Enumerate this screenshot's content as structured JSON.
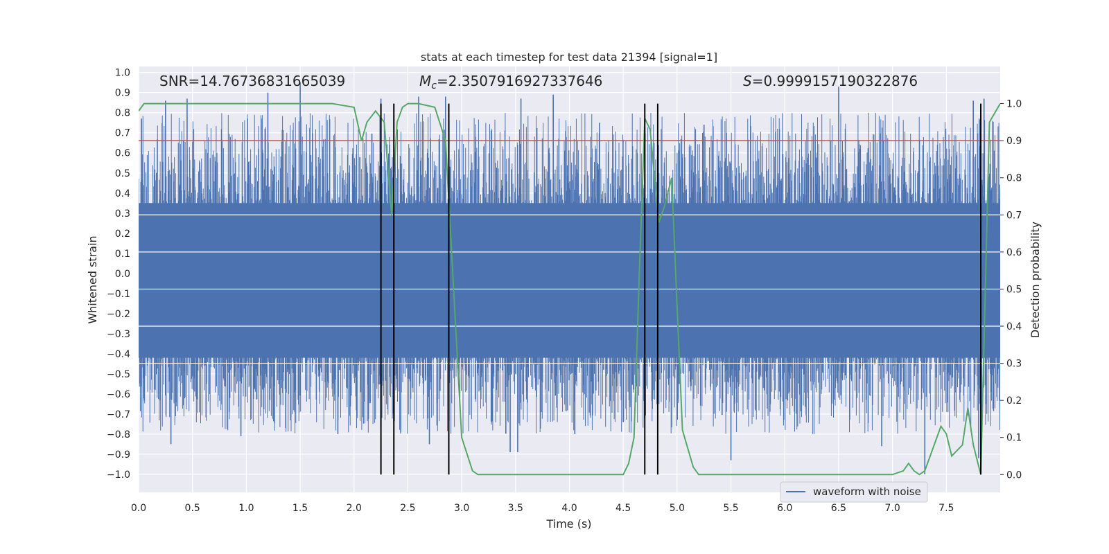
{
  "chart_data": {
    "type": "line",
    "title": "stats at each timestep for test data 21394 [signal=1]",
    "xlabel": "Time (s)",
    "ylabel": "Whitened strain",
    "y2label": "Detection probability",
    "xlim": [
      0.0,
      8.0
    ],
    "ylim": [
      -1.09,
      1.03
    ],
    "y2lim": [
      -0.048,
      1.1
    ],
    "xticks": [
      "0.0",
      "0.5",
      "1.0",
      "1.5",
      "2.0",
      "2.5",
      "3.0",
      "3.5",
      "4.0",
      "4.5",
      "5.0",
      "5.5",
      "6.0",
      "6.5",
      "7.0",
      "7.5"
    ],
    "yticks": [
      "1.0",
      "0.9",
      "0.8",
      "0.7",
      "0.6",
      "0.5",
      "0.4",
      "0.3",
      "0.2",
      "0.1",
      "0.0",
      "−0.1",
      "−0.2",
      "−0.3",
      "−0.4",
      "−0.5",
      "−0.6",
      "−0.7",
      "−0.8",
      "−0.9",
      "−1.0"
    ],
    "y2ticks": [
      "1.0",
      "0.9",
      "0.8",
      "0.7",
      "0.6",
      "0.5",
      "0.4",
      "0.3",
      "0.2",
      "0.1",
      "0.0"
    ],
    "annotations": {
      "snr": "SNR=14.76736831665039",
      "mc_symbol": "M",
      "mc_subscript": "c",
      "mc_value": "=2.3507916927337646",
      "s_symbol": "S",
      "s_value": "=0.9999157190322876"
    },
    "legend": {
      "label": "waveform with noise",
      "placement": "lower-right"
    },
    "waveform": {
      "name": "waveform with noise",
      "color": "#4c72b0",
      "dense_band": [
        -0.42,
        0.35
      ],
      "spikes": [
        {
          "x": 0.25,
          "y": 0.86
        },
        {
          "x": 0.45,
          "y": 0.87
        },
        {
          "x": 1.2,
          "y": 0.9
        },
        {
          "x": 1.5,
          "y": 0.95
        },
        {
          "x": 2.25,
          "y": 0.87
        },
        {
          "x": 2.6,
          "y": 0.88
        },
        {
          "x": 2.85,
          "y": 0.88
        },
        {
          "x": 3.55,
          "y": 0.87
        },
        {
          "x": 3.85,
          "y": 0.89
        },
        {
          "x": 4.28,
          "y": 0.75
        },
        {
          "x": 5.25,
          "y": 0.74
        },
        {
          "x": 6.5,
          "y": 0.93
        },
        {
          "x": 7.75,
          "y": 0.86
        },
        {
          "x": 7.85,
          "y": 0.87
        },
        {
          "x": 0.3,
          "y": -0.85
        },
        {
          "x": 0.95,
          "y": -0.81
        },
        {
          "x": 1.85,
          "y": -0.8
        },
        {
          "x": 2.25,
          "y": -0.77
        },
        {
          "x": 2.7,
          "y": -0.85
        },
        {
          "x": 3.45,
          "y": -0.89
        },
        {
          "x": 3.52,
          "y": -0.89
        },
        {
          "x": 4.05,
          "y": -0.8
        },
        {
          "x": 4.5,
          "y": -0.74
        },
        {
          "x": 5.5,
          "y": -0.93
        },
        {
          "x": 6.9,
          "y": -0.86
        },
        {
          "x": 7.3,
          "y": -1.0
        },
        {
          "x": 7.8,
          "y": -0.92
        }
      ]
    },
    "detection_probability": {
      "color": "#55a868",
      "x": [
        0.0,
        0.05,
        0.2,
        0.4,
        0.6,
        0.8,
        1.0,
        1.2,
        1.4,
        1.6,
        1.8,
        2.0,
        2.07,
        2.12,
        2.2,
        2.28,
        2.35,
        2.4,
        2.45,
        2.5,
        2.6,
        2.75,
        2.85,
        3.0,
        3.1,
        3.15,
        3.2,
        3.3,
        3.5,
        3.7,
        3.8,
        3.9,
        4.0,
        4.2,
        4.35,
        4.42,
        4.5,
        4.55,
        4.6,
        4.65,
        4.7,
        4.75,
        4.8,
        4.83,
        4.88,
        4.95,
        5.0,
        5.05,
        5.15,
        5.2,
        5.4,
        5.6,
        6.0,
        6.5,
        7.0,
        7.1,
        7.15,
        7.2,
        7.25,
        7.3,
        7.35,
        7.45,
        7.5,
        7.55,
        7.65,
        7.7,
        7.75,
        7.82,
        7.9,
        8.0
      ],
      "y": [
        0.98,
        1.0,
        1.0,
        1.0,
        1.0,
        1.0,
        1.0,
        1.0,
        1.0,
        1.0,
        1.0,
        0.99,
        0.9,
        0.95,
        0.98,
        0.95,
        0.7,
        0.95,
        0.99,
        1.0,
        1.0,
        0.99,
        0.9,
        0.1,
        0.01,
        0.0,
        0.0,
        0.0,
        0.0,
        0.0,
        0.0,
        0.0,
        0.0,
        0.0,
        0.0,
        0.0,
        0.0,
        0.03,
        0.1,
        0.55,
        0.96,
        0.93,
        0.77,
        0.68,
        0.72,
        0.8,
        0.45,
        0.12,
        0.02,
        0.0,
        0.0,
        0.0,
        0.0,
        0.0,
        0.0,
        0.01,
        0.03,
        0.01,
        0.0,
        0.01,
        0.05,
        0.13,
        0.11,
        0.05,
        0.08,
        0.18,
        0.08,
        0.0,
        0.95,
        1.0
      ]
    },
    "threshold": {
      "y2": 0.9,
      "color": "#c44e52"
    },
    "vertical_lines": [
      2.25,
      2.37,
      2.88,
      4.7,
      4.82,
      7.82
    ]
  }
}
